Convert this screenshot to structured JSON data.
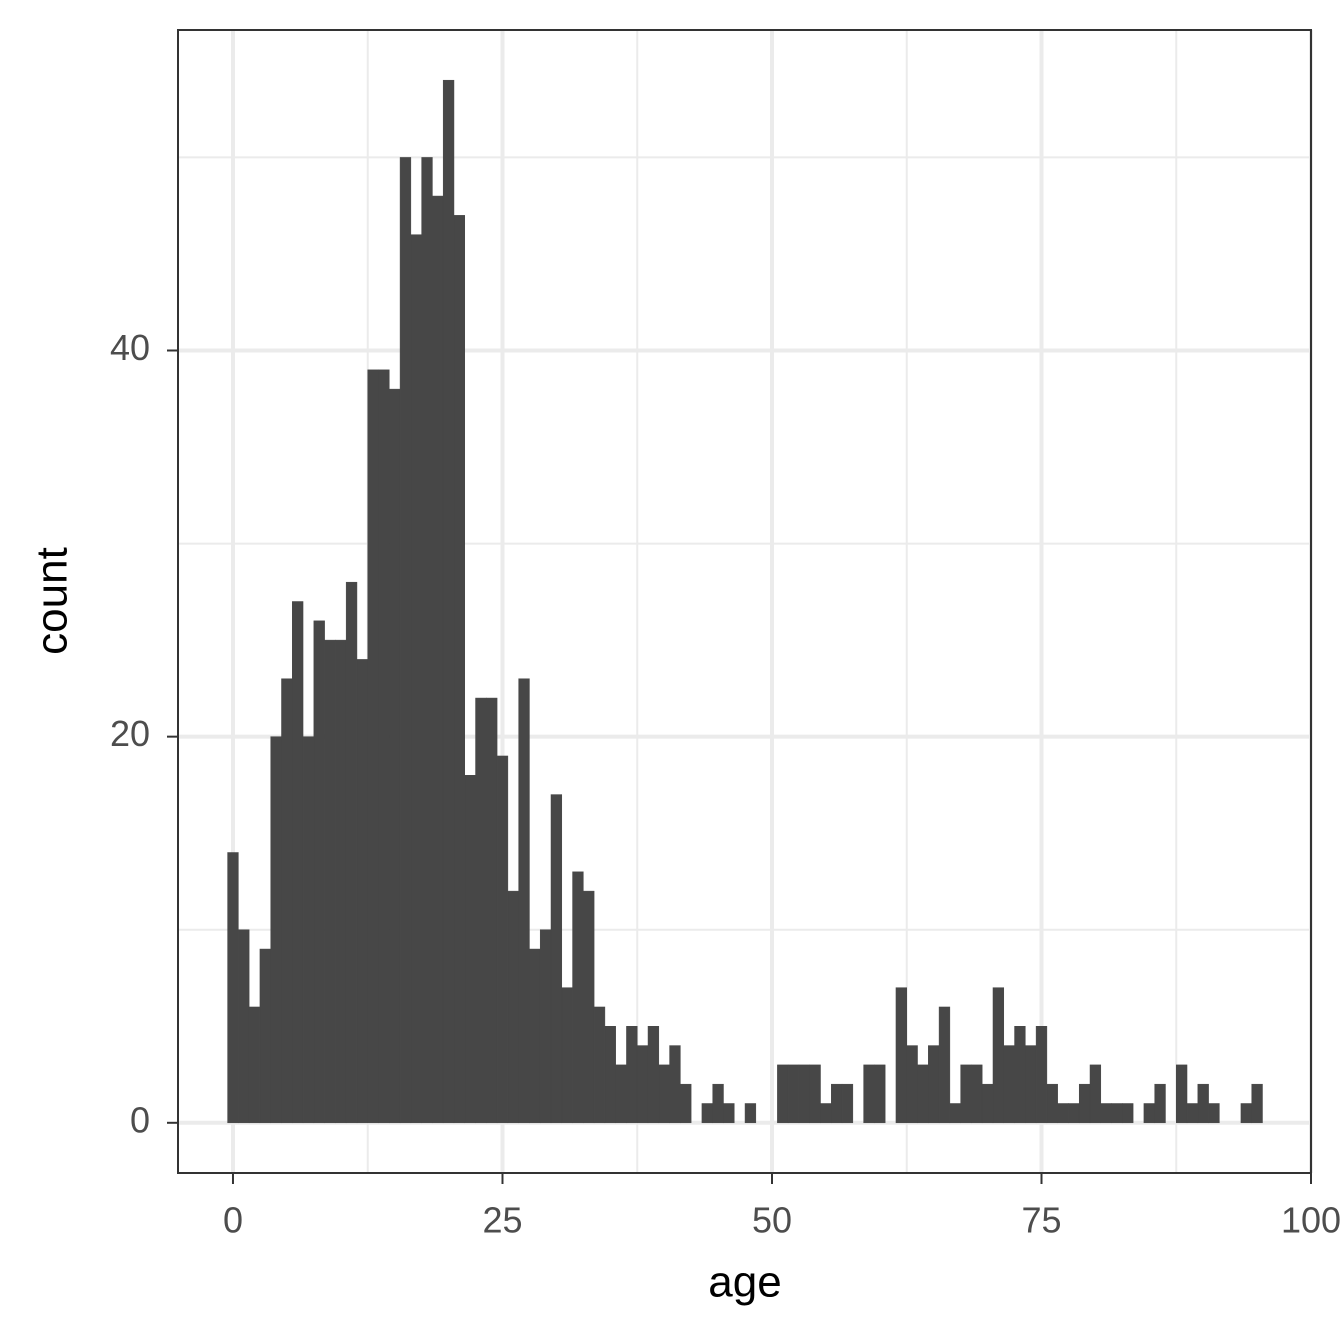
{
  "chart_data": {
    "type": "histogram",
    "x_label": "age",
    "y_label": "count",
    "bins": [
      -0.5,
      0.5,
      1.5,
      2.5,
      3.5,
      4.5,
      5.5,
      6.5,
      7.5,
      8.5,
      9.5,
      10.5,
      11.5,
      12.5,
      13.5,
      14.5,
      15.5,
      16.5,
      17.5,
      18.5,
      19.5,
      20.5,
      21.5,
      22.5,
      23.5,
      24.5,
      25.5,
      26.5,
      27.5,
      28.5,
      29.5,
      30.5,
      31.5,
      32.5,
      33.5,
      34.5,
      35.5,
      36.5,
      37.5,
      38.5,
      39.5,
      40.5,
      41.5,
      42.5,
      43.5,
      44.5,
      45.5,
      46.5,
      47.5,
      48.5,
      49.5,
      50.5,
      51.5,
      52.5,
      53.5,
      54.5,
      55.5,
      56.5,
      57.5,
      58.5,
      59.5,
      60.5,
      61.5,
      62.5,
      63.5,
      64.5,
      65.5,
      66.5,
      67.5,
      68.5,
      69.5,
      70.5,
      71.5,
      72.5,
      73.5,
      74.5,
      75.5,
      76.5,
      77.5,
      78.5,
      79.5,
      80.5,
      81.5,
      82.5,
      83.5,
      84.5,
      85.5,
      86.5,
      87.5,
      88.5,
      89.5,
      90.5,
      91.5,
      92.5,
      93.5,
      94.5,
      95.5
    ],
    "counts": [
      14,
      10,
      6,
      9,
      20,
      23,
      27,
      20,
      26,
      25,
      25,
      28,
      24,
      39,
      39,
      38,
      50,
      46,
      50,
      48,
      54,
      47,
      18,
      22,
      22,
      19,
      12,
      23,
      9,
      10,
      17,
      7,
      13,
      12,
      6,
      5,
      3,
      5,
      4,
      5,
      3,
      4,
      2,
      0,
      1,
      2,
      1,
      0,
      1,
      0,
      0,
      3,
      3,
      3,
      3,
      1,
      2,
      2,
      0,
      3,
      3,
      0,
      7,
      4,
      3,
      4,
      6,
      1,
      3,
      3,
      2,
      7,
      4,
      5,
      4,
      5,
      2,
      1,
      1,
      2,
      3,
      1,
      1,
      1,
      0,
      1,
      2,
      0,
      3,
      1,
      2,
      1,
      0,
      0,
      1,
      2
    ],
    "color": "#474747",
    "xlim": [
      -5.1,
      100
    ],
    "ylim": [
      -2.6,
      56.6
    ],
    "xticks": [
      0,
      25,
      50,
      75,
      100
    ],
    "yticks": [
      0,
      20,
      40
    ],
    "x_minor_grid": [
      12.5,
      37.5,
      62.5,
      87.5
    ],
    "y_minor_grid": [
      10,
      30,
      50
    ],
    "grid": true
  }
}
